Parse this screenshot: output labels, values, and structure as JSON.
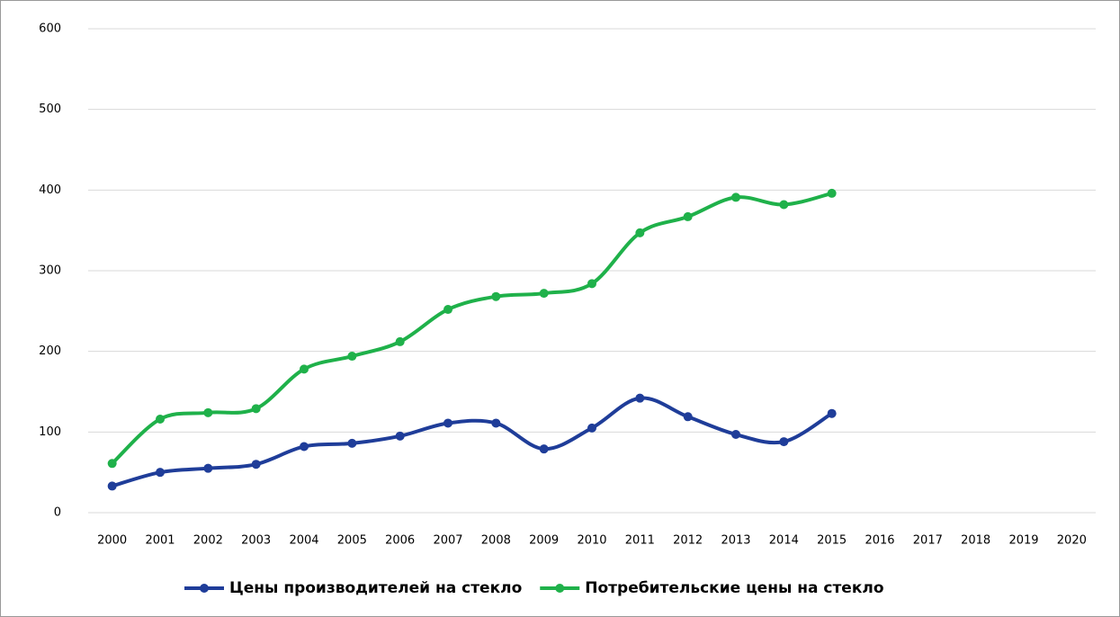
{
  "chart_data": {
    "type": "line",
    "categories": [
      "2000",
      "2001",
      "2002",
      "2003",
      "2004",
      "2005",
      "2006",
      "2007",
      "2008",
      "2009",
      "2010",
      "2011",
      "2012",
      "2013",
      "2014",
      "2015",
      "2016",
      "2017",
      "2018",
      "2019",
      "2020"
    ],
    "series": [
      {
        "name": "Цены производителей на стекло",
        "color": "#1f3d99",
        "values": [
          33,
          50,
          55,
          60,
          82,
          86,
          95,
          111,
          111,
          79,
          105,
          142,
          119,
          97,
          88,
          123,
          null,
          null,
          null,
          null,
          null
        ]
      },
      {
        "name": "Потребительские цены на стекло",
        "color": "#1fb14a",
        "values": [
          61,
          116,
          124,
          129,
          178,
          194,
          212,
          252,
          268,
          272,
          284,
          347,
          367,
          391,
          382,
          396,
          null,
          null,
          null,
          null,
          null
        ]
      }
    ],
    "ylim": [
      0,
      600
    ],
    "yticks": [
      0,
      100,
      200,
      300,
      400,
      500,
      600
    ],
    "grid": true,
    "legend": "bottom"
  }
}
